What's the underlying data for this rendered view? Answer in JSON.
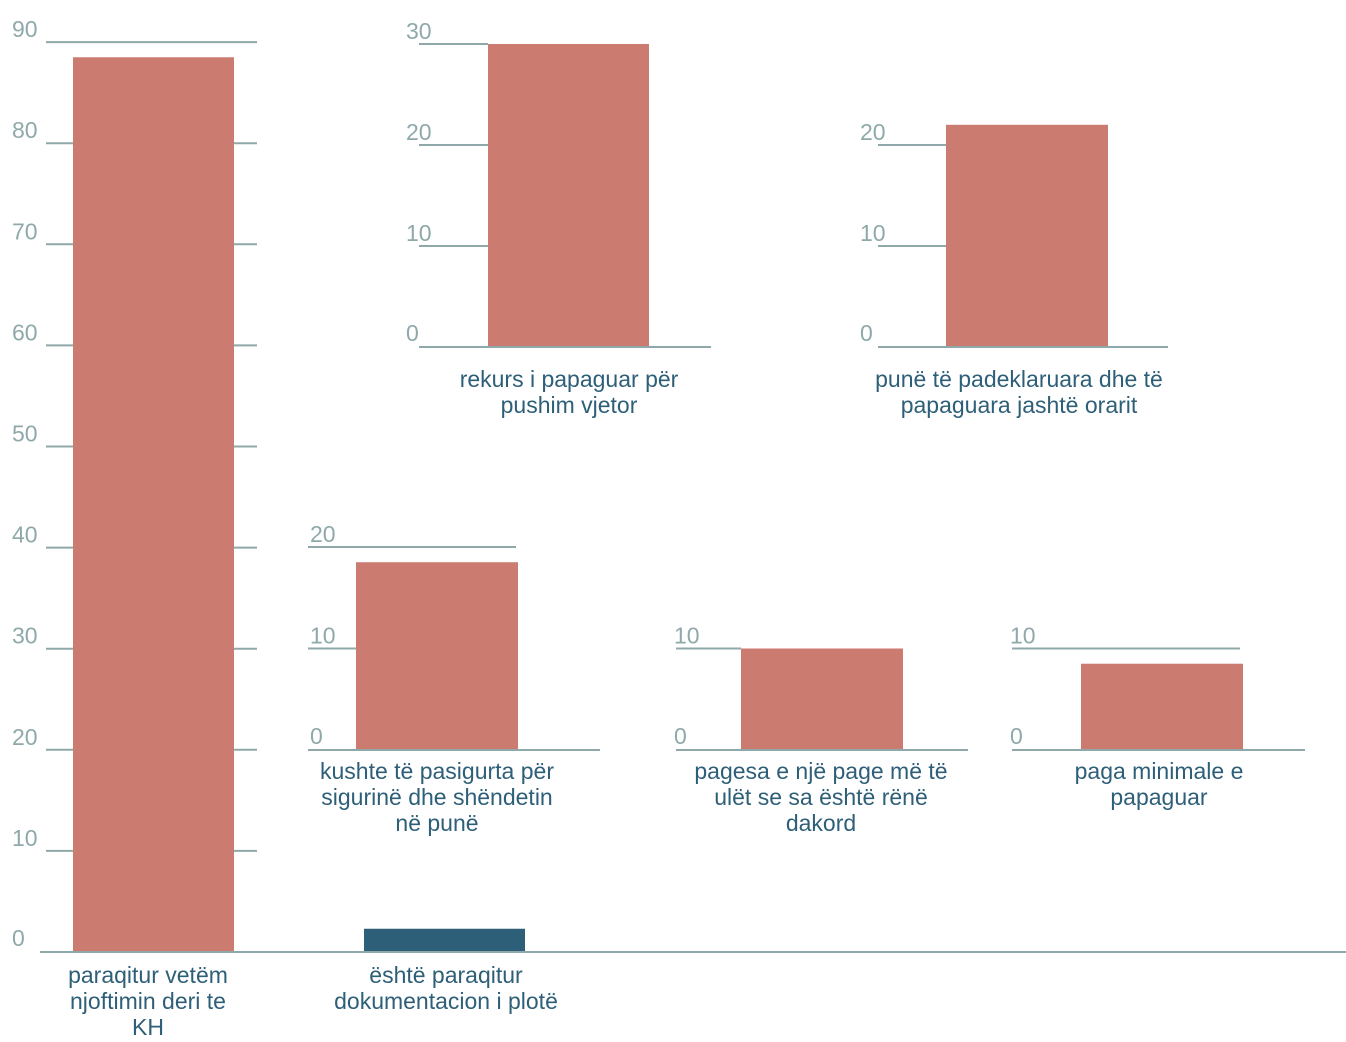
{
  "colors": {
    "bar": "#cc7b70",
    "bar_alt": "#2e5f78",
    "axis": "#8fa9aa",
    "tick_text": "#8fa9aa",
    "label_text": "#2e5f78"
  },
  "chart_data": [
    {
      "type": "bar",
      "categories": [
        "paraqitur vetëm njoftimin deri te KH",
        "është paraqitur dokumentacion i plotë"
      ],
      "category_lines": [
        [
          "paraqitur vetëm",
          "njoftimin deri te",
          "KH"
        ],
        [
          "është paraqitur",
          "dokumentacion i plotë"
        ]
      ],
      "values": [
        88.5,
        2.3
      ],
      "bar_colors": [
        "#cc7b70",
        "#2e5f78"
      ],
      "ylim": [
        0,
        90
      ],
      "yticks": [
        0,
        10,
        20,
        30,
        40,
        50,
        60,
        70,
        80,
        90
      ],
      "grid": false
    },
    {
      "type": "bar",
      "categories": [
        "rekurs i papaguar për pushim vjetor"
      ],
      "category_lines": [
        [
          "rekurs i papaguar për",
          "pushim vjetor"
        ]
      ],
      "values": [
        30
      ],
      "ylim": [
        0,
        30
      ],
      "yticks": [
        0,
        10,
        20,
        30
      ]
    },
    {
      "type": "bar",
      "categories": [
        "punë të padeklaruara dhe të papaguara jashtë orarit"
      ],
      "category_lines": [
        [
          "punë të padeklaruara dhe të",
          "papaguara jashtë orarit"
        ]
      ],
      "values": [
        22
      ],
      "ylim": [
        0,
        20
      ],
      "yticks": [
        0,
        10,
        20
      ]
    },
    {
      "type": "bar",
      "categories": [
        "kushte të pasigurta për sigurinë dhe shëndetin në punë"
      ],
      "category_lines": [
        [
          "kushte të pasigurta për",
          "sigurinë dhe shëndetin",
          "në punë"
        ]
      ],
      "values": [
        18.5
      ],
      "ylim": [
        0,
        20
      ],
      "yticks": [
        0,
        10,
        20
      ]
    },
    {
      "type": "bar",
      "categories": [
        "pagesa e një page më të ulët se sa është rënë dakord"
      ],
      "category_lines": [
        [
          "pagesa e një page më të",
          "ulët se sa është rënë",
          "dakord"
        ]
      ],
      "values": [
        10
      ],
      "ylim": [
        0,
        10
      ],
      "yticks": [
        0,
        10
      ]
    },
    {
      "type": "bar",
      "categories": [
        "paga minimale e papaguar"
      ],
      "category_lines": [
        [
          "paga minimale e",
          "papaguar"
        ]
      ],
      "values": [
        8.5
      ],
      "ylim": [
        0,
        10
      ],
      "yticks": [
        0,
        10
      ]
    }
  ]
}
